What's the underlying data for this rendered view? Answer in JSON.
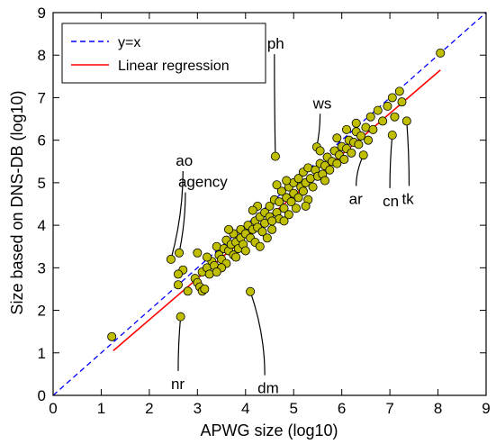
{
  "chart_data": {
    "type": "scatter",
    "xlabel": "APWG size (log10)",
    "ylabel": "Size based on DNS-DB (log10)",
    "xlim": [
      0,
      9
    ],
    "ylim": [
      0,
      9
    ],
    "xticks": [
      0,
      1,
      2,
      3,
      4,
      5,
      6,
      7,
      8,
      9
    ],
    "yticks": [
      0,
      1,
      2,
      3,
      4,
      5,
      6,
      7,
      8,
      9
    ],
    "grid": false,
    "legend_position": "top-left",
    "legend": [
      {
        "label": "y=x",
        "style": "dashed",
        "color": "#0000ff"
      },
      {
        "label": "Linear regression",
        "style": "solid",
        "color": "#ff0000"
      }
    ],
    "marker_color": "#bfbf00",
    "reference_line": {
      "label": "y=x",
      "x": [
        0,
        9
      ],
      "y": [
        0,
        9
      ]
    },
    "regression_line": {
      "label": "Linear regression",
      "x": [
        1.25,
        8.05
      ],
      "y": [
        1.05,
        7.65
      ]
    },
    "annotations": [
      {
        "text": "ph",
        "point": [
          4.62,
          5.62
        ],
        "text_pos": [
          4.45,
          8.15
        ]
      },
      {
        "text": "ws",
        "point": [
          5.48,
          5.84
        ],
        "text_pos": [
          5.4,
          6.75
        ]
      },
      {
        "text": "ao",
        "point": [
          2.45,
          3.2
        ],
        "text_pos": [
          2.55,
          5.4
        ]
      },
      {
        "text": "agency",
        "point": [
          2.62,
          3.35
        ],
        "text_pos": [
          2.6,
          4.9
        ]
      },
      {
        "text": "ar",
        "point": [
          6.45,
          5.65
        ],
        "text_pos": [
          6.15,
          4.5
        ]
      },
      {
        "text": "cn",
        "point": [
          7.05,
          6.12
        ],
        "text_pos": [
          6.85,
          4.45
        ]
      },
      {
        "text": "tk",
        "point": [
          7.35,
          6.45
        ],
        "text_pos": [
          7.25,
          4.5
        ]
      },
      {
        "text": "nr",
        "point": [
          2.65,
          1.85
        ],
        "text_pos": [
          2.45,
          0.15
        ]
      },
      {
        "text": "dm",
        "point": [
          4.1,
          2.44
        ],
        "text_pos": [
          4.25,
          0.05
        ]
      }
    ],
    "points": [
      [
        1.22,
        1.38
      ],
      [
        2.45,
        3.2
      ],
      [
        2.62,
        3.35
      ],
      [
        2.65,
        1.85
      ],
      [
        2.6,
        2.6
      ],
      [
        2.7,
        2.95
      ],
      [
        2.8,
        2.45
      ],
      [
        2.6,
        2.85
      ],
      [
        2.95,
        2.75
      ],
      [
        3.0,
        2.65
      ],
      [
        3.05,
        2.55
      ],
      [
        3.1,
        2.9
      ],
      [
        3.1,
        2.45
      ],
      [
        3.15,
        2.5
      ],
      [
        3.2,
        3.0
      ],
      [
        3.25,
        2.85
      ],
      [
        3.3,
        3.15
      ],
      [
        3.35,
        3.05
      ],
      [
        3.4,
        3.5
      ],
      [
        3.45,
        3.3
      ],
      [
        3.5,
        3.2
      ],
      [
        3.55,
        3.45
      ],
      [
        3.6,
        3.1
      ],
      [
        3.6,
        3.65
      ],
      [
        3.65,
        3.4
      ],
      [
        3.7,
        3.55
      ],
      [
        3.75,
        3.3
      ],
      [
        3.75,
        3.8
      ],
      [
        3.8,
        3.6
      ],
      [
        3.85,
        3.45
      ],
      [
        3.9,
        3.7
      ],
      [
        3.9,
        3.9
      ],
      [
        3.95,
        3.55
      ],
      [
        4.0,
        3.8
      ],
      [
        4.0,
        3.4
      ],
      [
        4.05,
        4.0
      ],
      [
        4.1,
        3.7
      ],
      [
        4.1,
        2.44
      ],
      [
        4.15,
        3.9
      ],
      [
        4.2,
        4.1
      ],
      [
        4.2,
        3.6
      ],
      [
        4.25,
        3.95
      ],
      [
        4.3,
        4.2
      ],
      [
        4.3,
        3.5
      ],
      [
        4.35,
        3.85
      ],
      [
        4.4,
        4.3
      ],
      [
        4.4,
        4.05
      ],
      [
        4.45,
        3.7
      ],
      [
        4.5,
        4.45
      ],
      [
        4.5,
        4.2
      ],
      [
        4.55,
        3.9
      ],
      [
        4.6,
        4.6
      ],
      [
        4.62,
        5.62
      ],
      [
        4.65,
        4.3
      ],
      [
        4.7,
        4.55
      ],
      [
        4.7,
        4.15
      ],
      [
        4.75,
        4.8
      ],
      [
        4.8,
        4.4
      ],
      [
        4.85,
        4.65
      ],
      [
        4.9,
        4.9
      ],
      [
        4.9,
        4.25
      ],
      [
        4.95,
        4.55
      ],
      [
        5.0,
        5.0
      ],
      [
        5.0,
        4.75
      ],
      [
        5.05,
        4.4
      ],
      [
        5.1,
        5.1
      ],
      [
        5.1,
        4.65
      ],
      [
        5.15,
        4.9
      ],
      [
        5.2,
        5.25
      ],
      [
        5.2,
        4.8
      ],
      [
        5.25,
        5.0
      ],
      [
        5.3,
        4.6
      ],
      [
        5.3,
        5.35
      ],
      [
        5.35,
        5.1
      ],
      [
        5.4,
        4.9
      ],
      [
        5.45,
        5.3
      ],
      [
        5.48,
        5.84
      ],
      [
        5.5,
        5.15
      ],
      [
        5.55,
        5.45
      ],
      [
        5.6,
        5.2
      ],
      [
        5.65,
        5.4
      ],
      [
        5.7,
        5.6
      ],
      [
        5.75,
        5.3
      ],
      [
        5.8,
        5.5
      ],
      [
        5.85,
        5.75
      ],
      [
        5.9,
        5.45
      ],
      [
        5.95,
        5.65
      ],
      [
        6.0,
        5.85
      ],
      [
        6.05,
        5.55
      ],
      [
        6.1,
        5.8
      ],
      [
        6.15,
        6.0
      ],
      [
        6.2,
        5.7
      ],
      [
        6.25,
        5.95
      ],
      [
        6.3,
        6.2
      ],
      [
        6.35,
        5.9
      ],
      [
        6.4,
        6.1
      ],
      [
        6.45,
        5.65
      ],
      [
        6.5,
        6.3
      ],
      [
        6.55,
        6.0
      ],
      [
        6.6,
        6.55
      ],
      [
        6.65,
        6.25
      ],
      [
        6.75,
        6.7
      ],
      [
        6.85,
        6.45
      ],
      [
        6.95,
        6.8
      ],
      [
        7.05,
        7.0
      ],
      [
        7.05,
        6.12
      ],
      [
        7.1,
        6.55
      ],
      [
        7.2,
        7.15
      ],
      [
        7.25,
        6.9
      ],
      [
        7.35,
        6.45
      ],
      [
        8.05,
        8.05
      ],
      [
        3.0,
        3.35
      ],
      [
        3.2,
        3.25
      ],
      [
        3.5,
        3.0
      ],
      [
        3.8,
        3.25
      ],
      [
        4.25,
        4.45
      ],
      [
        4.55,
        4.1
      ],
      [
        4.85,
        5.05
      ],
      [
        5.25,
        4.45
      ],
      [
        5.65,
        5.05
      ],
      [
        6.1,
        6.25
      ],
      [
        3.4,
        2.9
      ],
      [
        4.65,
        4.95
      ],
      [
        5.9,
        6.05
      ],
      [
        3.65,
        3.9
      ],
      [
        4.15,
        4.35
      ],
      [
        4.8,
        4.1
      ],
      [
        5.55,
        5.75
      ],
      [
        6.3,
        6.4
      ]
    ]
  }
}
